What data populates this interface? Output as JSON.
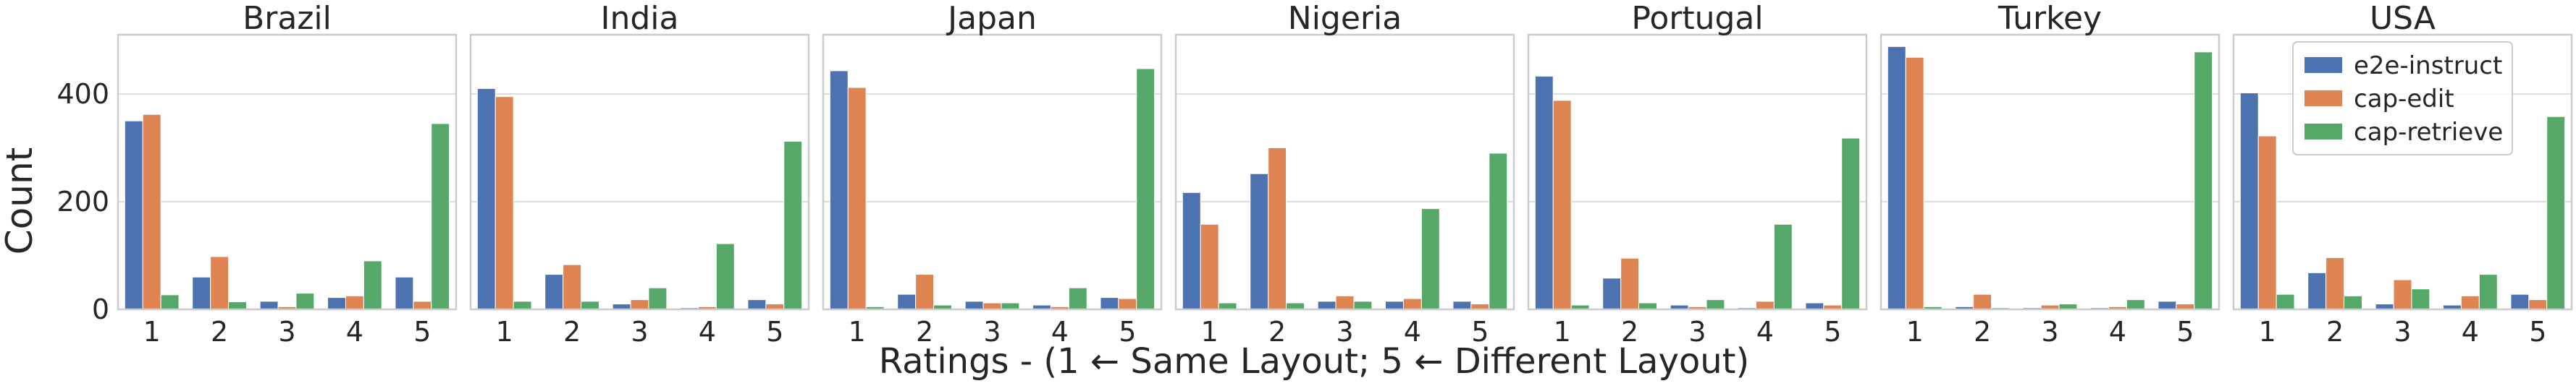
{
  "figure": {
    "ylabel": "Count",
    "xlabel": "Ratings - (1 ← Same Layout; 5 ← Different Layout)"
  },
  "legend": {
    "placement": "top-right of last panel",
    "items": [
      {
        "label": "e2e-instruct",
        "color": "#4c72b0"
      },
      {
        "label": "cap-edit",
        "color": "#dd8452"
      },
      {
        "label": "cap-retrieve",
        "color": "#55a868"
      }
    ]
  },
  "chart_data": [
    {
      "type": "bar",
      "title": "Brazil",
      "categories": [
        "1",
        "2",
        "3",
        "4",
        "5"
      ],
      "ylim": [
        0,
        510
      ],
      "yticks": [
        0,
        200,
        400
      ],
      "grid": true,
      "series": [
        {
          "name": "e2e-instruct",
          "values": [
            350,
            60,
            15,
            22,
            60
          ]
        },
        {
          "name": "cap-edit",
          "values": [
            362,
            98,
            5,
            25,
            15
          ]
        },
        {
          "name": "cap-retrieve",
          "values": [
            27,
            14,
            30,
            90,
            345
          ]
        }
      ]
    },
    {
      "type": "bar",
      "title": "India",
      "categories": [
        "1",
        "2",
        "3",
        "4",
        "5"
      ],
      "ylim": [
        0,
        510
      ],
      "yticks": [
        0,
        200,
        400
      ],
      "grid": true,
      "series": [
        {
          "name": "e2e-instruct",
          "values": [
            410,
            65,
            10,
            3,
            18
          ]
        },
        {
          "name": "cap-edit",
          "values": [
            395,
            83,
            18,
            5,
            10
          ]
        },
        {
          "name": "cap-retrieve",
          "values": [
            15,
            15,
            40,
            122,
            312
          ]
        }
      ]
    },
    {
      "type": "bar",
      "title": "Japan",
      "categories": [
        "1",
        "2",
        "3",
        "4",
        "5"
      ],
      "ylim": [
        0,
        510
      ],
      "yticks": [
        0,
        200,
        400
      ],
      "grid": true,
      "series": [
        {
          "name": "e2e-instruct",
          "values": [
            443,
            28,
            15,
            8,
            22
          ]
        },
        {
          "name": "cap-edit",
          "values": [
            412,
            65,
            12,
            5,
            20
          ]
        },
        {
          "name": "cap-retrieve",
          "values": [
            5,
            8,
            12,
            40,
            447
          ]
        }
      ]
    },
    {
      "type": "bar",
      "title": "Nigeria",
      "categories": [
        "1",
        "2",
        "3",
        "4",
        "5"
      ],
      "ylim": [
        0,
        510
      ],
      "yticks": [
        0,
        200,
        400
      ],
      "grid": true,
      "series": [
        {
          "name": "e2e-instruct",
          "values": [
            217,
            252,
            15,
            15,
            15
          ]
        },
        {
          "name": "cap-edit",
          "values": [
            158,
            300,
            25,
            20,
            10
          ]
        },
        {
          "name": "cap-retrieve",
          "values": [
            12,
            12,
            15,
            187,
            290
          ]
        }
      ]
    },
    {
      "type": "bar",
      "title": "Portugal",
      "categories": [
        "1",
        "2",
        "3",
        "4",
        "5"
      ],
      "ylim": [
        0,
        510
      ],
      "yticks": [
        0,
        200,
        400
      ],
      "grid": true,
      "series": [
        {
          "name": "e2e-instruct",
          "values": [
            433,
            58,
            8,
            3,
            12
          ]
        },
        {
          "name": "cap-edit",
          "values": [
            388,
            95,
            5,
            15,
            8
          ]
        },
        {
          "name": "cap-retrieve",
          "values": [
            8,
            12,
            18,
            158,
            318
          ]
        }
      ]
    },
    {
      "type": "bar",
      "title": "Turkey",
      "categories": [
        "1",
        "2",
        "3",
        "4",
        "5"
      ],
      "ylim": [
        0,
        510
      ],
      "yticks": [
        0,
        200,
        400
      ],
      "grid": true,
      "series": [
        {
          "name": "e2e-instruct",
          "values": [
            488,
            5,
            3,
            3,
            15
          ]
        },
        {
          "name": "cap-edit",
          "values": [
            468,
            28,
            8,
            5,
            10
          ]
        },
        {
          "name": "cap-retrieve",
          "values": [
            5,
            3,
            10,
            18,
            478
          ]
        }
      ]
    },
    {
      "type": "bar",
      "title": "USA",
      "categories": [
        "1",
        "2",
        "3",
        "4",
        "5"
      ],
      "ylim": [
        0,
        510
      ],
      "yticks": [
        0,
        200,
        400
      ],
      "grid": true,
      "series": [
        {
          "name": "e2e-instruct",
          "values": [
            402,
            68,
            10,
            8,
            28
          ]
        },
        {
          "name": "cap-edit",
          "values": [
            322,
            96,
            55,
            25,
            18
          ]
        },
        {
          "name": "cap-retrieve",
          "values": [
            28,
            25,
            38,
            65,
            358
          ]
        }
      ]
    }
  ]
}
